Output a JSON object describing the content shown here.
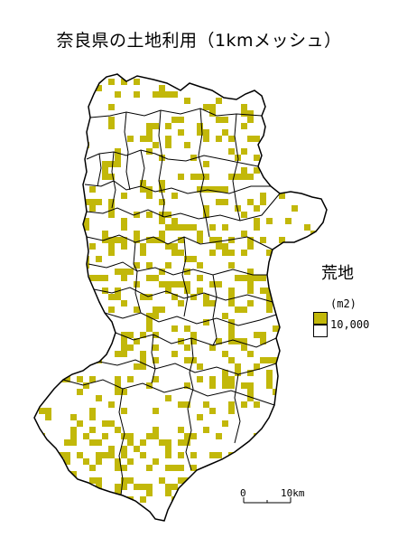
{
  "title": "奈良県の土地利用（1kmメッシュ）",
  "legend": {
    "title": "荒地",
    "unit": "(m2)",
    "value_label": "10,000",
    "filled_color": "#c2b80a",
    "empty_color": "#ffffff"
  },
  "scale_bar": {
    "start_label": "0",
    "end_label": "10km"
  },
  "colors": {
    "mesh": "#c2b80a",
    "boundary": "#000000",
    "land": "#ffffff"
  }
}
